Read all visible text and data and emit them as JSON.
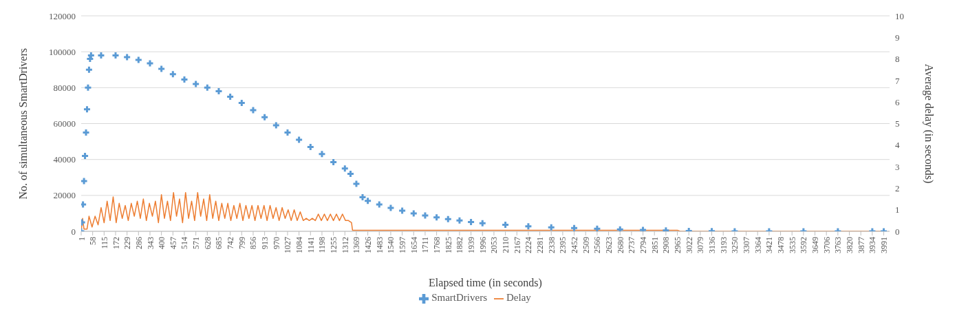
{
  "chart_data": {
    "type": "scatter",
    "xlabel": "Elapsed time (in seconds)",
    "ylabel": "No. of simultaneous  SmartDrivers",
    "y2label": "Average delay (in seconds)",
    "xlim": [
      1,
      4020
    ],
    "xticks": [
      1,
      58,
      115,
      172,
      229,
      286,
      343,
      400,
      457,
      514,
      571,
      628,
      685,
      742,
      799,
      856,
      913,
      970,
      1027,
      1084,
      1141,
      1198,
      1255,
      1312,
      1369,
      1426,
      1483,
      1540,
      1597,
      1654,
      1711,
      1768,
      1825,
      1882,
      1939,
      1996,
      2053,
      2110,
      2167,
      2224,
      2281,
      2338,
      2395,
      2452,
      2509,
      2566,
      2623,
      2680,
      2737,
      2794,
      2851,
      2908,
      2965,
      3022,
      3079,
      3136,
      3193,
      3250,
      3307,
      3364,
      3421,
      3478,
      3535,
      3592,
      3649,
      3706,
      3763,
      3820,
      3877,
      3934,
      3991
    ],
    "ylim": [
      0,
      120000
    ],
    "yticks": [
      0,
      20000,
      40000,
      60000,
      80000,
      100000,
      120000
    ],
    "y2lim": [
      0,
      10
    ],
    "y2ticks": [
      0,
      1,
      2,
      3,
      4,
      5,
      6,
      7,
      8,
      9,
      10
    ],
    "grid": "y",
    "legend": "bottom",
    "series": [
      {
        "name": "SmartDrivers",
        "marker": "cross",
        "color": "#5b9bd5",
        "x": [
          1,
          5,
          10,
          15,
          20,
          25,
          30,
          35,
          40,
          45,
          50,
          100,
          172,
          229,
          286,
          343,
          400,
          457,
          514,
          571,
          628,
          685,
          742,
          799,
          856,
          913,
          970,
          1027,
          1084,
          1141,
          1198,
          1255,
          1312,
          1340,
          1369,
          1400,
          1426,
          1483,
          1540,
          1597,
          1654,
          1711,
          1768,
          1825,
          1882,
          1939,
          1996,
          2110,
          2224,
          2338,
          2452,
          2566,
          2680,
          2794,
          2908,
          3022,
          3136,
          3250,
          3421,
          3592,
          3763,
          3934,
          3991
        ],
        "values": [
          0,
          5000,
          15000,
          28000,
          42000,
          55000,
          68000,
          80000,
          90000,
          96000,
          98000,
          98000,
          98000,
          97000,
          95500,
          93500,
          90500,
          87500,
          84500,
          82000,
          80000,
          78000,
          75000,
          71500,
          67500,
          63500,
          59000,
          55000,
          51000,
          47000,
          43000,
          38500,
          35000,
          32000,
          26500,
          19000,
          17000,
          15000,
          13000,
          11500,
          10000,
          8800,
          7800,
          6800,
          6000,
          5200,
          4500,
          3600,
          2800,
          2200,
          1800,
          1400,
          1100,
          800,
          500,
          200,
          100,
          0,
          0,
          0,
          0,
          0,
          0
        ]
      },
      {
        "name": "Delay",
        "type": "line",
        "axis": "y2",
        "color": "#ed7d31",
        "x": [
          1,
          8,
          15,
          30,
          40,
          55,
          70,
          85,
          100,
          115,
          130,
          145,
          160,
          175,
          190,
          205,
          220,
          235,
          250,
          265,
          280,
          295,
          310,
          325,
          340,
          355,
          370,
          385,
          400,
          415,
          430,
          445,
          460,
          475,
          490,
          505,
          520,
          535,
          550,
          565,
          580,
          595,
          610,
          625,
          640,
          655,
          670,
          685,
          700,
          715,
          730,
          745,
          760,
          775,
          790,
          805,
          820,
          835,
          850,
          865,
          880,
          895,
          910,
          925,
          940,
          955,
          970,
          985,
          1000,
          1015,
          1030,
          1045,
          1060,
          1075,
          1090,
          1105,
          1120,
          1135,
          1150,
          1165,
          1180,
          1195,
          1210,
          1225,
          1240,
          1255,
          1270,
          1285,
          1300,
          1315,
          1330,
          1345,
          1350,
          1400,
          2000,
          2965,
          2980,
          3991
        ],
        "values": [
          0,
          0.6,
          0.1,
          0.1,
          0.7,
          0.2,
          0.7,
          0.3,
          1.1,
          0.4,
          1.4,
          0.5,
          1.6,
          0.4,
          1.3,
          0.6,
          1.2,
          0.5,
          1.3,
          0.7,
          1.4,
          0.6,
          1.5,
          0.5,
          1.3,
          0.7,
          1.4,
          0.4,
          1.7,
          0.6,
          1.4,
          0.5,
          1.8,
          0.7,
          1.5,
          0.4,
          1.8,
          0.6,
          1.4,
          0.5,
          1.8,
          0.7,
          1.5,
          0.5,
          1.7,
          0.6,
          1.4,
          0.5,
          1.3,
          0.6,
          1.3,
          0.5,
          1.2,
          0.6,
          1.3,
          0.5,
          1.2,
          0.6,
          1.2,
          0.5,
          1.2,
          0.6,
          1.2,
          0.5,
          1.2,
          0.6,
          1.1,
          0.5,
          1.1,
          0.6,
          1.0,
          0.5,
          1.0,
          0.5,
          0.9,
          0.5,
          0.6,
          0.5,
          0.6,
          0.5,
          0.8,
          0.5,
          0.8,
          0.5,
          0.8,
          0.5,
          0.8,
          0.5,
          0.8,
          0.5,
          0.5,
          0.4,
          0.05,
          0.05,
          0.05,
          0.05,
          0,
          0
        ]
      }
    ]
  }
}
